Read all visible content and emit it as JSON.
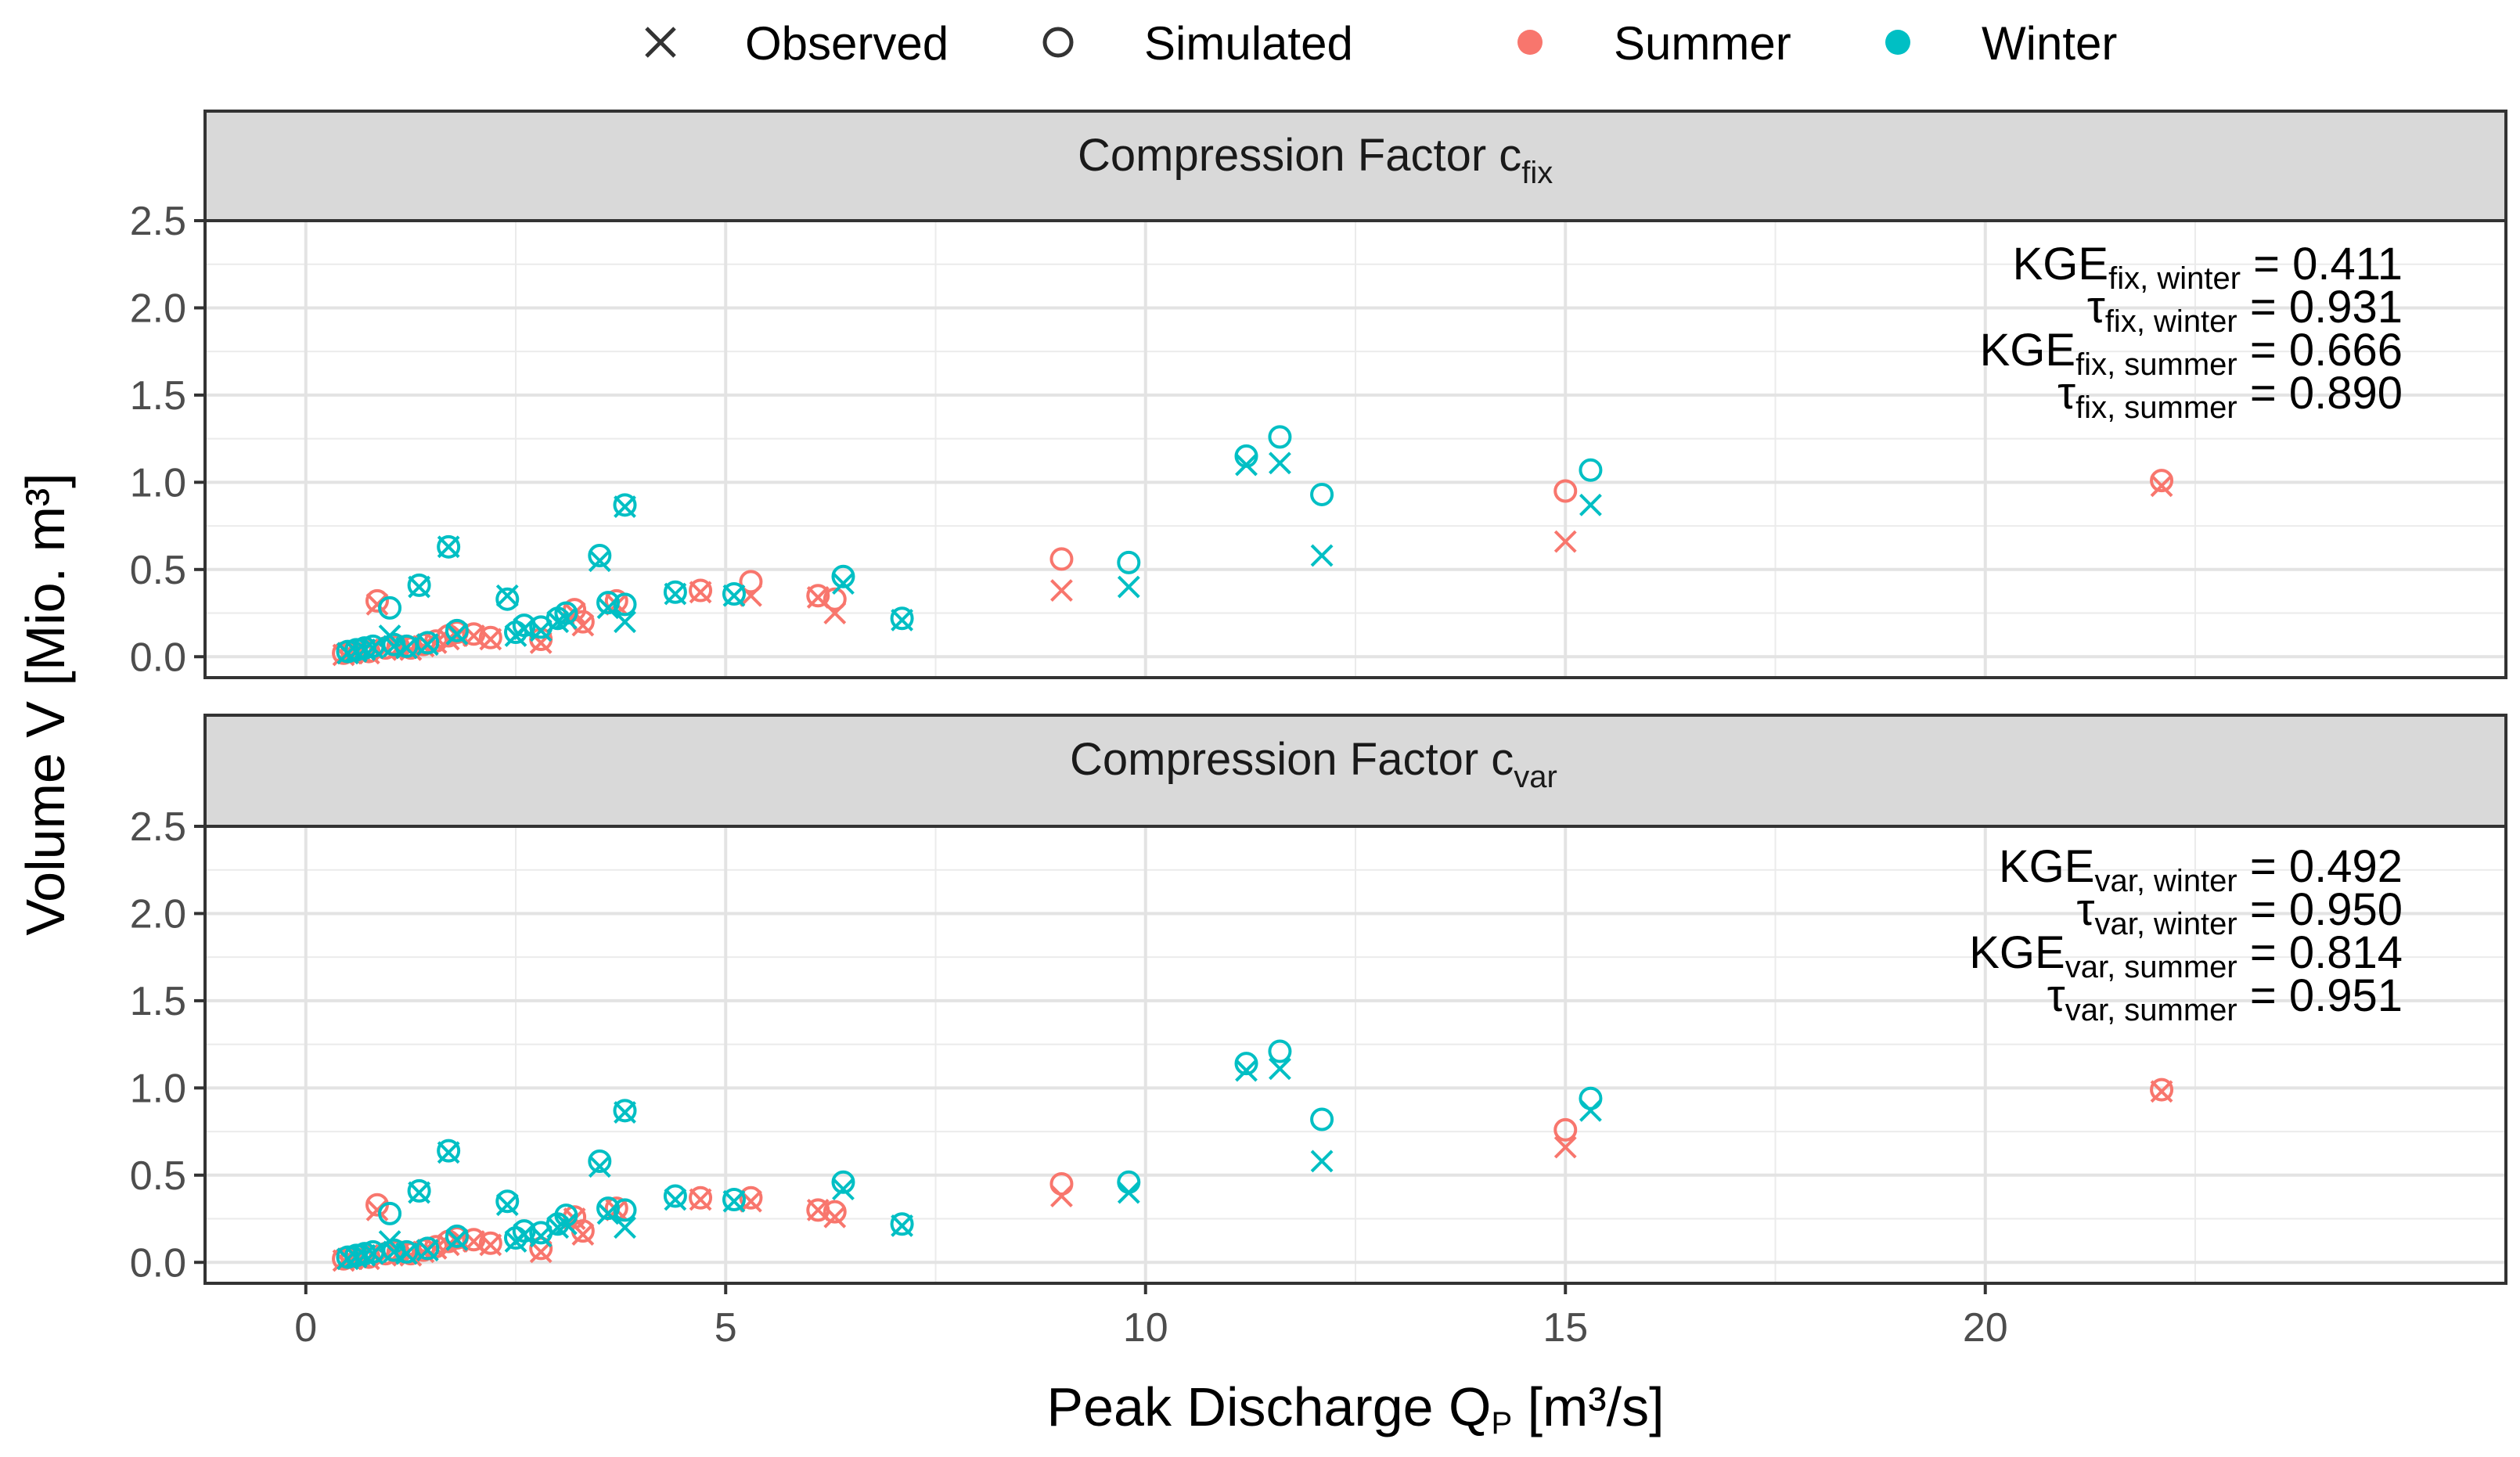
{
  "chart_data": {
    "type": "scatter",
    "xlabel": "Peak Discharge Q",
    "xlabel_sub": "P",
    "xlabel_unit": " [m³/s]",
    "ylabel": "Volume V [Mio. m³]",
    "xlim": [
      -1.2,
      26.2
    ],
    "ylim": [
      -0.12,
      2.5
    ],
    "x_ticks": [
      0,
      5,
      10,
      15,
      20
    ],
    "x_tick_labels": [
      "0",
      "5",
      "10",
      "15",
      "20"
    ],
    "y_ticks": [
      0.0,
      0.5,
      1.0,
      1.5,
      2.0,
      2.5
    ],
    "y_tick_labels": [
      "0.0",
      "0.5",
      "1.0",
      "1.5",
      "2.0",
      "2.5"
    ],
    "legend": {
      "shape_entries": [
        {
          "symbol": "cross",
          "label": "Observed"
        },
        {
          "symbol": "circle",
          "label": "Simulated"
        }
      ],
      "color_entries": [
        {
          "label": "Summer",
          "color": "#F8766D"
        },
        {
          "label": "Winter",
          "color": "#00BFC4"
        }
      ],
      "position": "top"
    },
    "panels": [
      {
        "strip_main": "Compression Factor c",
        "strip_sub": "fix",
        "stats": [
          {
            "main": "KGE",
            "sub": "fix, winter",
            "value": " = 0.411"
          },
          {
            "main": "τ",
            "sub": "fix, winter",
            "value": " = 0.931"
          },
          {
            "main": "KGE",
            "sub": "fix, summer",
            "value": " = 0.666"
          },
          {
            "main": "τ",
            "sub": "fix, summer",
            "value": " = 0.890"
          }
        ],
        "series": [
          {
            "name": "Summer",
            "color": "#F8766D",
            "observed": [
              [
                0.45,
                0.01
              ],
              [
                0.55,
                0.02
              ],
              [
                0.65,
                0.03
              ],
              [
                0.75,
                0.02
              ],
              [
                0.85,
                0.3
              ],
              [
                0.95,
                0.04
              ],
              [
                1.1,
                0.05
              ],
              [
                1.25,
                0.04
              ],
              [
                1.4,
                0.06
              ],
              [
                1.55,
                0.08
              ],
              [
                1.7,
                0.1
              ],
              [
                1.8,
                0.12
              ],
              [
                2.0,
                0.12
              ],
              [
                2.2,
                0.1
              ],
              [
                2.8,
                0.08
              ],
              [
                3.2,
                0.25
              ],
              [
                3.3,
                0.18
              ],
              [
                3.7,
                0.3
              ],
              [
                4.7,
                0.37
              ],
              [
                5.3,
                0.35
              ],
              [
                6.1,
                0.34
              ],
              [
                6.3,
                0.25
              ],
              [
                9.0,
                0.38
              ],
              [
                15.0,
                0.66
              ],
              [
                22.1,
                0.98
              ]
            ],
            "simulated": [
              [
                0.45,
                0.02
              ],
              [
                0.55,
                0.03
              ],
              [
                0.65,
                0.04
              ],
              [
                0.75,
                0.03
              ],
              [
                0.85,
                0.32
              ],
              [
                0.95,
                0.05
              ],
              [
                1.1,
                0.06
              ],
              [
                1.25,
                0.05
              ],
              [
                1.4,
                0.07
              ],
              [
                1.55,
                0.09
              ],
              [
                1.7,
                0.12
              ],
              [
                1.8,
                0.14
              ],
              [
                2.0,
                0.13
              ],
              [
                2.2,
                0.11
              ],
              [
                2.8,
                0.1
              ],
              [
                3.2,
                0.27
              ],
              [
                3.3,
                0.2
              ],
              [
                3.7,
                0.32
              ],
              [
                4.7,
                0.38
              ],
              [
                5.3,
                0.43
              ],
              [
                6.1,
                0.35
              ],
              [
                6.3,
                0.33
              ],
              [
                9.0,
                0.56
              ],
              [
                15.0,
                0.95
              ],
              [
                22.1,
                1.01
              ]
            ]
          },
          {
            "name": "Winter",
            "color": "#00BFC4",
            "observed": [
              [
                0.5,
                0.02
              ],
              [
                0.6,
                0.03
              ],
              [
                0.7,
                0.04
              ],
              [
                0.8,
                0.05
              ],
              [
                1.0,
                0.12
              ],
              [
                1.05,
                0.06
              ],
              [
                1.2,
                0.05
              ],
              [
                1.35,
                0.4
              ],
              [
                1.45,
                0.07
              ],
              [
                1.7,
                0.63
              ],
              [
                1.8,
                0.13
              ],
              [
                2.4,
                0.35
              ],
              [
                2.5,
                0.12
              ],
              [
                2.6,
                0.16
              ],
              [
                2.8,
                0.15
              ],
              [
                3.0,
                0.2
              ],
              [
                3.1,
                0.22
              ],
              [
                3.5,
                0.55
              ],
              [
                3.6,
                0.28
              ],
              [
                3.8,
                0.86
              ],
              [
                3.8,
                0.2
              ],
              [
                4.4,
                0.36
              ],
              [
                5.1,
                0.35
              ],
              [
                6.4,
                0.42
              ],
              [
                7.1,
                0.21
              ],
              [
                9.8,
                0.4
              ],
              [
                11.2,
                1.1
              ],
              [
                11.6,
                1.11
              ],
              [
                12.1,
                0.58
              ],
              [
                15.3,
                0.87
              ]
            ],
            "simulated": [
              [
                0.5,
                0.03
              ],
              [
                0.6,
                0.04
              ],
              [
                0.7,
                0.05
              ],
              [
                0.8,
                0.06
              ],
              [
                1.0,
                0.28
              ],
              [
                1.05,
                0.07
              ],
              [
                1.2,
                0.06
              ],
              [
                1.35,
                0.41
              ],
              [
                1.45,
                0.08
              ],
              [
                1.7,
                0.63
              ],
              [
                1.8,
                0.15
              ],
              [
                2.4,
                0.33
              ],
              [
                2.5,
                0.14
              ],
              [
                2.6,
                0.18
              ],
              [
                2.8,
                0.17
              ],
              [
                3.0,
                0.22
              ],
              [
                3.1,
                0.25
              ],
              [
                3.5,
                0.58
              ],
              [
                3.6,
                0.31
              ],
              [
                3.8,
                0.87
              ],
              [
                3.8,
                0.3
              ],
              [
                4.4,
                0.37
              ],
              [
                5.1,
                0.36
              ],
              [
                6.4,
                0.46
              ],
              [
                7.1,
                0.22
              ],
              [
                9.8,
                0.54
              ],
              [
                11.2,
                1.15
              ],
              [
                11.6,
                1.26
              ],
              [
                12.1,
                0.93
              ],
              [
                15.3,
                1.07
              ]
            ]
          }
        ]
      },
      {
        "strip_main": "Compression Factor c",
        "strip_sub": "var",
        "stats": [
          {
            "main": "KGE",
            "sub": "var, winter",
            "value": " = 0.492"
          },
          {
            "main": "τ",
            "sub": "var, winter",
            "value": " = 0.950"
          },
          {
            "main": "KGE",
            "sub": "var, summer",
            "value": " = 0.814"
          },
          {
            "main": "τ",
            "sub": "var, summer",
            "value": " = 0.951"
          }
        ],
        "series": [
          {
            "name": "Summer",
            "color": "#F8766D",
            "observed": [
              [
                0.45,
                0.01
              ],
              [
                0.55,
                0.02
              ],
              [
                0.65,
                0.03
              ],
              [
                0.75,
                0.02
              ],
              [
                0.85,
                0.3
              ],
              [
                0.95,
                0.04
              ],
              [
                1.1,
                0.05
              ],
              [
                1.25,
                0.04
              ],
              [
                1.4,
                0.06
              ],
              [
                1.55,
                0.08
              ],
              [
                1.7,
                0.1
              ],
              [
                1.8,
                0.12
              ],
              [
                2.0,
                0.12
              ],
              [
                2.2,
                0.1
              ],
              [
                2.8,
                0.06
              ],
              [
                3.2,
                0.25
              ],
              [
                3.3,
                0.16
              ],
              [
                3.7,
                0.3
              ],
              [
                4.7,
                0.36
              ],
              [
                5.3,
                0.35
              ],
              [
                6.1,
                0.3
              ],
              [
                6.3,
                0.26
              ],
              [
                9.0,
                0.38
              ],
              [
                15.0,
                0.66
              ],
              [
                22.1,
                0.98
              ]
            ],
            "simulated": [
              [
                0.45,
                0.02
              ],
              [
                0.55,
                0.03
              ],
              [
                0.65,
                0.04
              ],
              [
                0.75,
                0.03
              ],
              [
                0.85,
                0.33
              ],
              [
                0.95,
                0.05
              ],
              [
                1.1,
                0.06
              ],
              [
                1.25,
                0.05
              ],
              [
                1.4,
                0.07
              ],
              [
                1.55,
                0.09
              ],
              [
                1.7,
                0.12
              ],
              [
                1.8,
                0.14
              ],
              [
                2.0,
                0.13
              ],
              [
                2.2,
                0.11
              ],
              [
                2.8,
                0.08
              ],
              [
                3.2,
                0.26
              ],
              [
                3.3,
                0.18
              ],
              [
                3.7,
                0.31
              ],
              [
                4.7,
                0.37
              ],
              [
                5.3,
                0.37
              ],
              [
                6.1,
                0.3
              ],
              [
                6.3,
                0.29
              ],
              [
                9.0,
                0.45
              ],
              [
                15.0,
                0.76
              ],
              [
                22.1,
                0.99
              ]
            ]
          },
          {
            "name": "Winter",
            "color": "#00BFC4",
            "observed": [
              [
                0.5,
                0.02
              ],
              [
                0.6,
                0.03
              ],
              [
                0.7,
                0.04
              ],
              [
                0.8,
                0.05
              ],
              [
                1.0,
                0.12
              ],
              [
                1.05,
                0.06
              ],
              [
                1.2,
                0.05
              ],
              [
                1.35,
                0.4
              ],
              [
                1.45,
                0.07
              ],
              [
                1.7,
                0.63
              ],
              [
                1.8,
                0.13
              ],
              [
                2.4,
                0.33
              ],
              [
                2.5,
                0.12
              ],
              [
                2.6,
                0.16
              ],
              [
                2.8,
                0.15
              ],
              [
                3.0,
                0.2
              ],
              [
                3.1,
                0.22
              ],
              [
                3.5,
                0.55
              ],
              [
                3.6,
                0.28
              ],
              [
                3.8,
                0.86
              ],
              [
                3.8,
                0.2
              ],
              [
                4.4,
                0.36
              ],
              [
                5.1,
                0.35
              ],
              [
                6.4,
                0.42
              ],
              [
                7.1,
                0.21
              ],
              [
                9.8,
                0.4
              ],
              [
                11.2,
                1.1
              ],
              [
                11.6,
                1.11
              ],
              [
                12.1,
                0.58
              ],
              [
                15.3,
                0.87
              ]
            ],
            "simulated": [
              [
                0.5,
                0.03
              ],
              [
                0.6,
                0.04
              ],
              [
                0.7,
                0.05
              ],
              [
                0.8,
                0.06
              ],
              [
                1.0,
                0.28
              ],
              [
                1.05,
                0.07
              ],
              [
                1.2,
                0.06
              ],
              [
                1.35,
                0.41
              ],
              [
                1.45,
                0.08
              ],
              [
                1.7,
                0.64
              ],
              [
                1.8,
                0.15
              ],
              [
                2.4,
                0.35
              ],
              [
                2.5,
                0.14
              ],
              [
                2.6,
                0.18
              ],
              [
                2.8,
                0.17
              ],
              [
                3.0,
                0.22
              ],
              [
                3.1,
                0.27
              ],
              [
                3.5,
                0.58
              ],
              [
                3.6,
                0.31
              ],
              [
                3.8,
                0.87
              ],
              [
                3.8,
                0.3
              ],
              [
                4.4,
                0.38
              ],
              [
                5.1,
                0.36
              ],
              [
                6.4,
                0.46
              ],
              [
                7.1,
                0.22
              ],
              [
                9.8,
                0.46
              ],
              [
                11.2,
                1.14
              ],
              [
                11.6,
                1.21
              ],
              [
                12.1,
                0.82
              ],
              [
                15.3,
                0.94
              ]
            ]
          }
        ]
      }
    ]
  }
}
